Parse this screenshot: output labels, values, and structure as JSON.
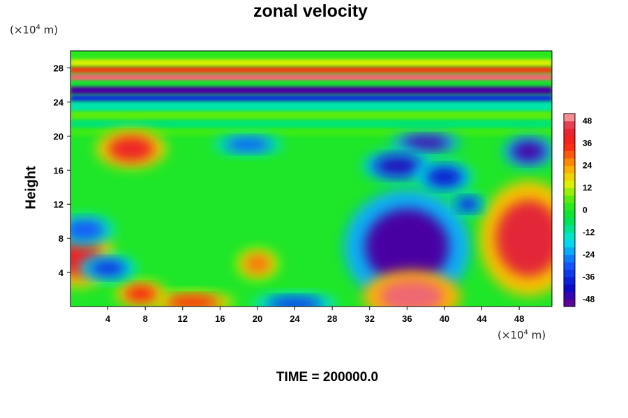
{
  "chart_data": {
    "type": "heatmap",
    "title": "zonal velocity",
    "ylabel": "Height",
    "xlabel": "",
    "x_unit": {
      "prefix": "(×10",
      "exp": "4",
      "suffix": " m)"
    },
    "y_unit": {
      "prefix": "(×10",
      "exp": "4",
      "suffix": " m)"
    },
    "xlim": [
      0,
      51.5
    ],
    "ylim": [
      0,
      30
    ],
    "x_ticks": [
      4,
      8,
      12,
      16,
      20,
      24,
      28,
      32,
      36,
      40,
      44,
      48
    ],
    "y_ticks": [
      4,
      8,
      12,
      16,
      20,
      24,
      28
    ],
    "colorbar": {
      "range": [
        -52,
        52
      ],
      "ticks": [
        48,
        36,
        24,
        12,
        0,
        -12,
        -24,
        -36,
        -48
      ],
      "colormap": "rainbow (purple → blue → cyan → green → yellow → orange → red → pink)"
    },
    "bands": [
      {
        "y_range": [
          28.2,
          29.0
        ],
        "value": 14
      },
      {
        "y_range": [
          27.4,
          28.1
        ],
        "value": 33
      },
      {
        "y_range": [
          26.5,
          27.3
        ],
        "value": 48
      },
      {
        "y_range": [
          26.0,
          26.4
        ],
        "value": -3
      },
      {
        "y_range": [
          24.9,
          25.8
        ],
        "value": -48
      },
      {
        "y_range": [
          24.1,
          24.8
        ],
        "value": -36
      }
    ],
    "features": [
      {
        "x": 36,
        "y": 7,
        "value": -48
      },
      {
        "x": 36.5,
        "y": 1.2,
        "value": 48
      },
      {
        "x": 49,
        "y": 8,
        "value": 44
      },
      {
        "x": 0.8,
        "y": 6,
        "value": 40
      },
      {
        "x": 6.5,
        "y": 18.5,
        "value": 40
      },
      {
        "x": 38,
        "y": 19.2,
        "value": -48
      },
      {
        "x": 49,
        "y": 18.2,
        "value": -48
      },
      {
        "x": 35,
        "y": 16.5,
        "value": -44
      },
      {
        "x": 40,
        "y": 15.2,
        "value": -40
      },
      {
        "x": 19,
        "y": 19,
        "value": -30
      },
      {
        "x": 20,
        "y": 5,
        "value": 28
      },
      {
        "x": 13,
        "y": 0.5,
        "value": 36
      },
      {
        "x": 24,
        "y": 0.3,
        "value": -36
      },
      {
        "x": 7.5,
        "y": 1.5,
        "value": 36
      },
      {
        "x": 4,
        "y": 4.5,
        "value": -36
      },
      {
        "x": 1.5,
        "y": 9,
        "value": -30
      },
      {
        "x": 42.5,
        "y": 12,
        "value": -40
      }
    ]
  },
  "footer": {
    "time_label": "TIME = 200000.0"
  }
}
